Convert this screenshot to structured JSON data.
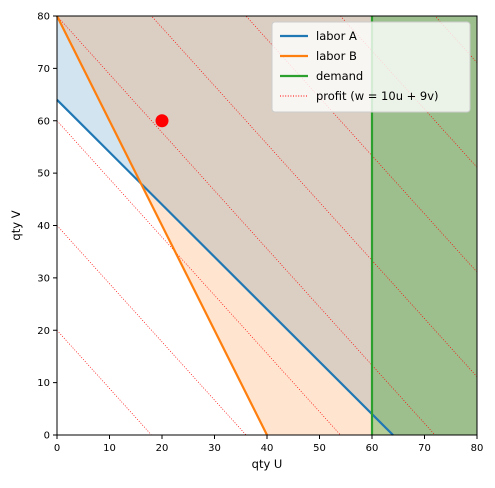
{
  "chart_data": {
    "type": "line",
    "title": "",
    "xlabel": "qty U",
    "ylabel": "qty V",
    "xlim": [
      0,
      80
    ],
    "ylim": [
      0,
      80
    ],
    "xticks": [
      0,
      10,
      20,
      30,
      40,
      50,
      60,
      70,
      80
    ],
    "yticks": [
      0,
      10,
      20,
      30,
      40,
      50,
      60,
      70,
      80
    ],
    "grid": false,
    "legend_position": "top-right",
    "series": [
      {
        "name": "labor A",
        "kind": "line",
        "color": "#1f77b4",
        "x": [
          0,
          64
        ],
        "y": [
          64,
          0
        ]
      },
      {
        "name": "labor B",
        "kind": "line",
        "color": "#ff7f0e",
        "x": [
          0,
          40
        ],
        "y": [
          80,
          0
        ]
      },
      {
        "name": "demand",
        "kind": "vline",
        "color": "#2ca02c",
        "x": [
          60,
          60
        ],
        "y": [
          0,
          80
        ]
      },
      {
        "name": "profit (w = 10u + 9v)",
        "kind": "contours",
        "color": "#ff0000",
        "levels": [
          180,
          360,
          540,
          720,
          900,
          1080,
          1260,
          1440
        ]
      }
    ],
    "regions": [
      {
        "name": "labor A feasible",
        "color": "#1f77b4",
        "opacity": 0.2,
        "constraint": "u + v >= 64"
      },
      {
        "name": "labor B feasible",
        "color": "#ff7f0e",
        "opacity": 0.2,
        "constraint": "2u + v >= 80"
      },
      {
        "name": "demand feasible",
        "color": "#2ca02c",
        "opacity": 0.35,
        "constraint": "u >= 60"
      }
    ],
    "marker": {
      "x": 20,
      "y": 60,
      "color": "#ff0000"
    }
  }
}
